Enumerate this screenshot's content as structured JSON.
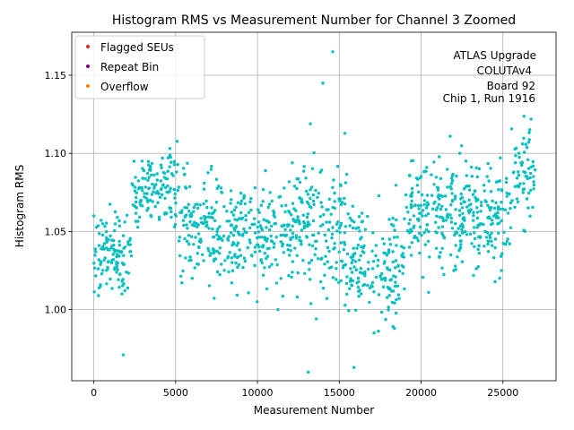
{
  "chart_data": {
    "type": "scatter",
    "title": "Histogram RMS vs Measurement Number for Channel 3 Zoomed",
    "xlabel": "Measurement Number",
    "ylabel": "Histogram RMS",
    "xlim": [
      -1350,
      28250
    ],
    "ylim": [
      0.9545,
      1.1775
    ],
    "xticks": [
      0,
      5000,
      10000,
      15000,
      20000,
      25000
    ],
    "xtick_labels": [
      "0",
      "5000",
      "10000",
      "15000",
      "20000",
      "25000"
    ],
    "yticks": [
      1.0,
      1.05,
      1.1,
      1.15
    ],
    "ytick_labels": [
      "1.00",
      "1.05",
      "1.10",
      "1.15"
    ],
    "grid": true,
    "legend": {
      "placement": "top-left",
      "entries": [
        {
          "label": "Flagged SEUs",
          "color": "#d62728"
        },
        {
          "label": "Repeat Bin",
          "color": "#800080"
        },
        {
          "label": "Overflow",
          "color": "#ff7f0e"
        }
      ]
    },
    "annotation": [
      "ATLAS Upgrade",
      "COLUTAv4",
      "Board 92",
      "Chip 1, Run 1916"
    ],
    "series": [
      {
        "name": "measurements",
        "color": "#00bfbf",
        "n_points": 1340,
        "x_range": [
          0,
          27000
        ],
        "segments": [
          {
            "x": [
              0,
              2300
            ],
            "center": 1.035,
            "spread": 0.022
          },
          {
            "x": [
              2300,
              5200
            ],
            "center": 1.078,
            "spread": 0.02
          },
          {
            "x": [
              5200,
              8000
            ],
            "center": 1.055,
            "spread": 0.03
          },
          {
            "x": [
              8000,
              12000
            ],
            "center": 1.045,
            "spread": 0.027
          },
          {
            "x": [
              12000,
              15500
            ],
            "center": 1.055,
            "spread": 0.035
          },
          {
            "x": [
              15500,
              19000
            ],
            "center": 1.03,
            "spread": 0.03
          },
          {
            "x": [
              19000,
              22000
            ],
            "center": 1.062,
            "spread": 0.03
          },
          {
            "x": [
              22000,
              25500
            ],
            "center": 1.06,
            "spread": 0.028
          },
          {
            "x": [
              25500,
              27000
            ],
            "center": 1.09,
            "spread": 0.025
          }
        ],
        "notable_points": [
          {
            "x": 13100,
            "y": 0.96
          },
          {
            "x": 14600,
            "y": 1.165
          },
          {
            "x": 14000,
            "y": 1.145
          },
          {
            "x": 15900,
            "y": 0.963
          },
          {
            "x": 1800,
            "y": 0.971
          }
        ]
      }
    ]
  }
}
